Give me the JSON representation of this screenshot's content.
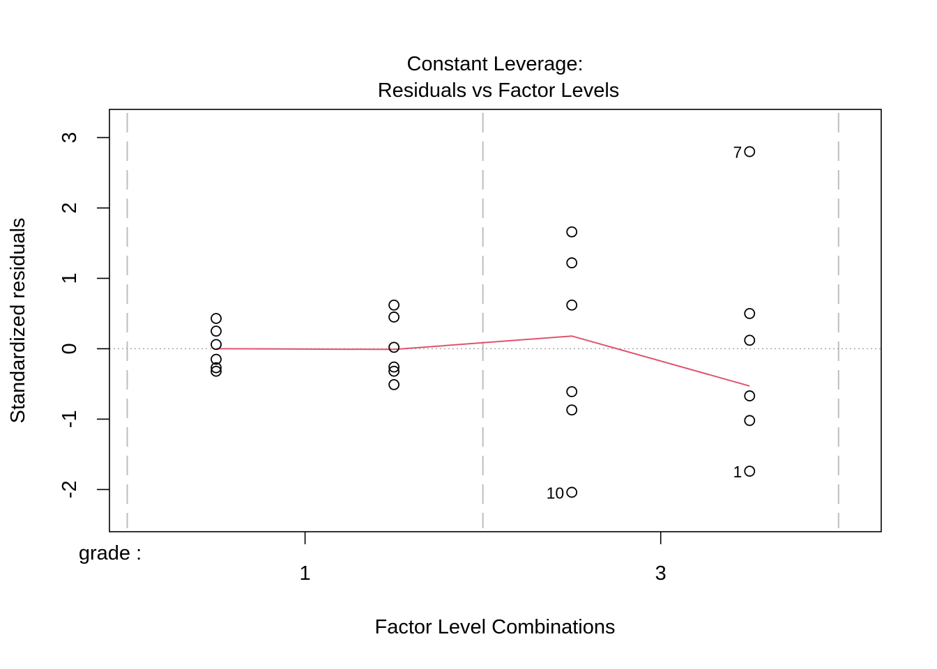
{
  "chart_data": {
    "type": "scatter",
    "title_line1": "Constant Leverage:",
    "title_line2": "Residuals vs Factor Levels",
    "xlabel": "Factor Level Combinations",
    "ylabel": "Standardized residuals",
    "factor_label": "grade :",
    "factor_ticks": [
      "1",
      "3"
    ],
    "ylim": [
      -2.6,
      3.4
    ],
    "yticks": [
      -2,
      -1,
      0,
      1,
      2,
      3
    ],
    "xlim": [
      -0.1,
      4.24
    ],
    "x_tick_positions": [
      1,
      3
    ],
    "grid_vertical": [
      0,
      2,
      4
    ],
    "zero_line": 0,
    "colors": {
      "points": "#000000",
      "smooth": "#DF536B",
      "grid": "#BEBEBE"
    },
    "points": [
      {
        "x": 0.5,
        "y": 0.43
      },
      {
        "x": 0.5,
        "y": 0.25
      },
      {
        "x": 0.5,
        "y": 0.06
      },
      {
        "x": 0.5,
        "y": -0.15
      },
      {
        "x": 0.5,
        "y": -0.27
      },
      {
        "x": 0.5,
        "y": -0.32
      },
      {
        "x": 1.5,
        "y": 0.62
      },
      {
        "x": 1.5,
        "y": 0.45
      },
      {
        "x": 1.5,
        "y": 0.02
      },
      {
        "x": 1.5,
        "y": -0.26
      },
      {
        "x": 1.5,
        "y": -0.32
      },
      {
        "x": 1.5,
        "y": -0.51
      },
      {
        "x": 2.5,
        "y": 1.66
      },
      {
        "x": 2.5,
        "y": 1.22
      },
      {
        "x": 2.5,
        "y": 0.62
      },
      {
        "x": 2.5,
        "y": -0.61
      },
      {
        "x": 2.5,
        "y": -0.87
      },
      {
        "x": 2.5,
        "y": -2.04,
        "label": "10"
      },
      {
        "x": 3.5,
        "y": 2.8,
        "label": "7"
      },
      {
        "x": 3.5,
        "y": 0.5
      },
      {
        "x": 3.5,
        "y": 0.12
      },
      {
        "x": 3.5,
        "y": -0.67
      },
      {
        "x": 3.5,
        "y": -1.02
      },
      {
        "x": 3.5,
        "y": -1.74,
        "label": "1"
      }
    ],
    "smooth": [
      {
        "x": 0.5,
        "y": 0.0
      },
      {
        "x": 1.5,
        "y": -0.01
      },
      {
        "x": 2.5,
        "y": 0.18
      },
      {
        "x": 3.5,
        "y": -0.53
      }
    ]
  }
}
